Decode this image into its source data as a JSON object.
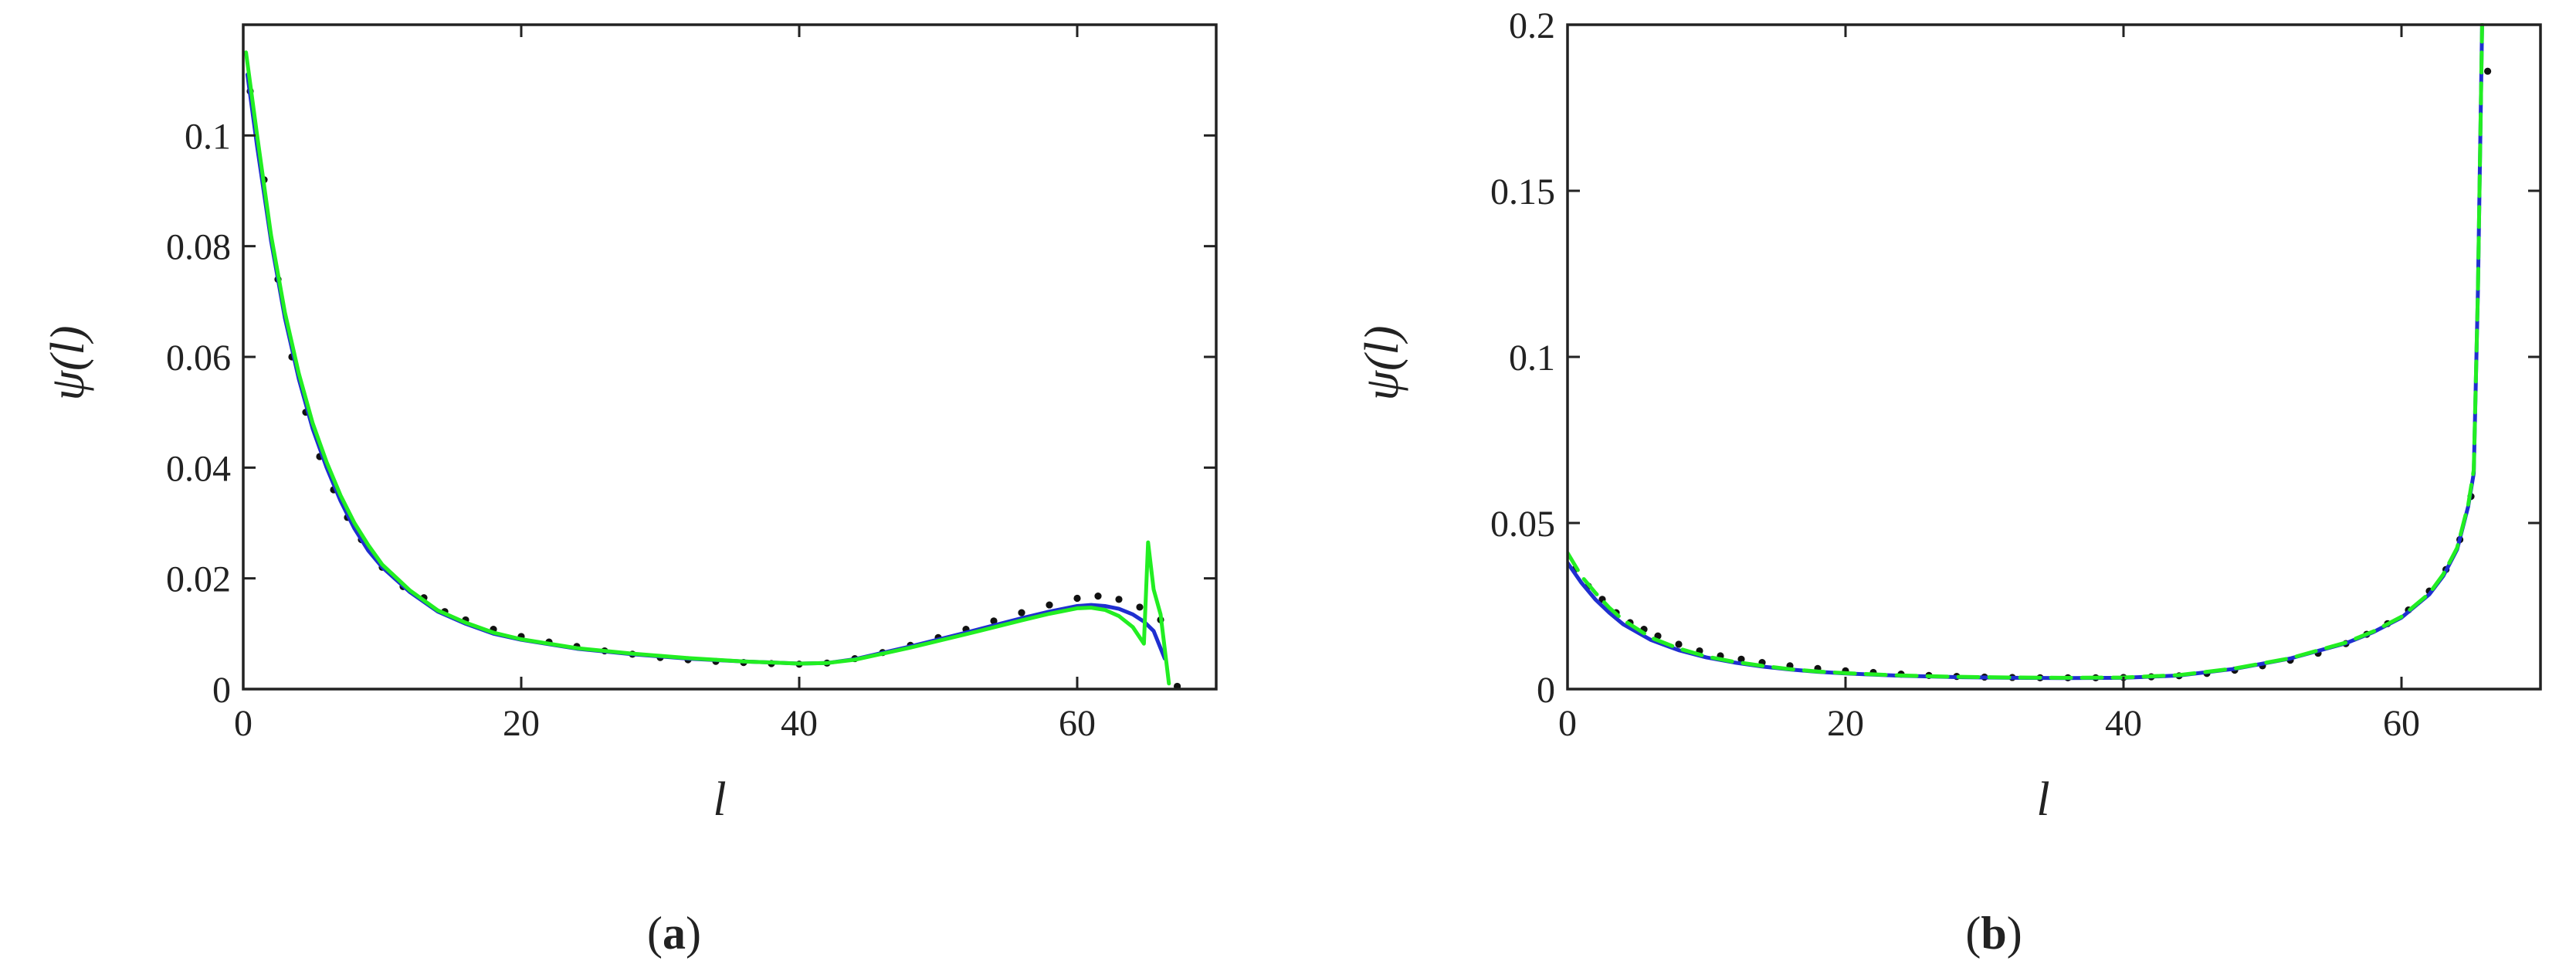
{
  "colors": {
    "axis": "#222222",
    "blue": "#1f2fd0",
    "green": "#22ee22",
    "dots": "#111111"
  },
  "chart_data": [
    {
      "type": "line",
      "panel_label": "a",
      "xlabel": "l",
      "ylabel": "ψ(l)",
      "xlim": [
        0,
        70
      ],
      "ylim": [
        0,
        0.12
      ],
      "x_ticks": [
        0,
        20,
        40,
        60
      ],
      "x_tick_labels": [
        "0",
        "20",
        "40",
        "60"
      ],
      "y_ticks": [
        0,
        0.02,
        0.04,
        0.06,
        0.08,
        0.1
      ],
      "y_tick_labels": [
        "0",
        "0.02",
        "0.04",
        "0.06",
        "0.08",
        "0.1"
      ],
      "grid": false,
      "series": [
        {
          "style": "dotted",
          "color": "#111111",
          "x": [
            0.5,
            1.5,
            2.5,
            3.5,
            4.5,
            5.5,
            6.5,
            7.5,
            8.5,
            10,
            11.5,
            13,
            14.5,
            16,
            18,
            20,
            22,
            24,
            26,
            28,
            30,
            32,
            34,
            36,
            38,
            40,
            42,
            44,
            46,
            48,
            50,
            52,
            54,
            56,
            58,
            60,
            61.5,
            63,
            64.5,
            66,
            67.2
          ],
          "y": [
            0.108,
            0.092,
            0.074,
            0.06,
            0.05,
            0.042,
            0.036,
            0.031,
            0.027,
            0.022,
            0.0185,
            0.0165,
            0.014,
            0.0125,
            0.0108,
            0.0095,
            0.0085,
            0.0077,
            0.0069,
            0.0063,
            0.0057,
            0.0053,
            0.005,
            0.0048,
            0.0046,
            0.0045,
            0.0047,
            0.0055,
            0.0066,
            0.0079,
            0.0093,
            0.0108,
            0.0123,
            0.0138,
            0.0152,
            0.0164,
            0.0168,
            0.0162,
            0.0148,
            0.0125,
            0.0005
          ]
        },
        {
          "style": "solid",
          "color": "#1f2fd0",
          "x": [
            0.3,
            1,
            2,
            3,
            4,
            5,
            6,
            7,
            8,
            9,
            10,
            12,
            14,
            16,
            18,
            20,
            24,
            28,
            32,
            36,
            40,
            42,
            44,
            48,
            52,
            56,
            58,
            60,
            61,
            62,
            63,
            64,
            64.8,
            65.5,
            66.3
          ],
          "y": [
            0.111,
            0.098,
            0.081,
            0.067,
            0.056,
            0.047,
            0.04,
            0.034,
            0.029,
            0.025,
            0.022,
            0.0175,
            0.014,
            0.0118,
            0.01,
            0.0089,
            0.0073,
            0.0063,
            0.0055,
            0.005,
            0.0046,
            0.0047,
            0.0054,
            0.0077,
            0.0102,
            0.0128,
            0.014,
            0.015,
            0.0152,
            0.015,
            0.0145,
            0.0135,
            0.0122,
            0.0105,
            0.0055
          ]
        },
        {
          "style": "solid",
          "color": "#22ee22",
          "x": [
            0.2,
            1,
            2,
            3,
            4,
            5,
            6,
            7,
            8,
            9,
            10,
            12,
            14,
            16,
            18,
            20,
            24,
            28,
            32,
            36,
            40,
            42,
            44,
            48,
            52,
            56,
            58,
            60,
            61,
            62,
            63,
            64,
            64.8,
            65.1,
            65.5,
            66,
            66.6
          ],
          "y": [
            0.115,
            0.1,
            0.082,
            0.068,
            0.057,
            0.048,
            0.041,
            0.035,
            0.03,
            0.026,
            0.0225,
            0.0178,
            0.0142,
            0.012,
            0.0102,
            0.009,
            0.0074,
            0.0064,
            0.0056,
            0.005,
            0.0046,
            0.0047,
            0.0053,
            0.0075,
            0.0099,
            0.0124,
            0.0136,
            0.0146,
            0.0147,
            0.0143,
            0.0132,
            0.0112,
            0.0082,
            0.0265,
            0.018,
            0.0135,
            0.001
          ]
        }
      ]
    },
    {
      "type": "line",
      "panel_label": "b",
      "xlabel": "l",
      "ylabel": "ψ(l)",
      "xlim": [
        0,
        70
      ],
      "ylim": [
        0,
        0.2
      ],
      "x_ticks": [
        0,
        20,
        40,
        60
      ],
      "x_tick_labels": [
        "0",
        "20",
        "40",
        "60"
      ],
      "y_ticks": [
        0,
        0.05,
        0.1,
        0.15,
        0.2
      ],
      "y_tick_labels": [
        "0",
        "0.05",
        "0.1",
        "0.15",
        "0.2"
      ],
      "grid": false,
      "series": [
        {
          "style": "dotted",
          "color": "#111111",
          "x": [
            0.5,
            1.5,
            2.5,
            3.5,
            4.5,
            5.5,
            6.5,
            8,
            9.5,
            11,
            12.5,
            14,
            16,
            18,
            20,
            22,
            24,
            26,
            28,
            30,
            32,
            34,
            36,
            38,
            40,
            42,
            44,
            46,
            48,
            50,
            52,
            54,
            56,
            57.5,
            59,
            60.5,
            62,
            63.2,
            64.2,
            65,
            66.2
          ],
          "y": [
            0.036,
            0.031,
            0.027,
            0.023,
            0.02,
            0.018,
            0.016,
            0.0135,
            0.0115,
            0.01,
            0.009,
            0.008,
            0.007,
            0.0062,
            0.0055,
            0.005,
            0.0045,
            0.0041,
            0.0038,
            0.0036,
            0.0035,
            0.0034,
            0.0034,
            0.0034,
            0.0035,
            0.0037,
            0.004,
            0.0047,
            0.0057,
            0.007,
            0.0087,
            0.0108,
            0.0137,
            0.0165,
            0.0197,
            0.0238,
            0.0295,
            0.036,
            0.045,
            0.058,
            0.186
          ]
        },
        {
          "style": "solid",
          "color": "#1f2fd0",
          "x": [
            0,
            1,
            2,
            3,
            4,
            6,
            8,
            10,
            12,
            14,
            16,
            18,
            20,
            24,
            28,
            32,
            36,
            40,
            44,
            48,
            52,
            56,
            58,
            60,
            62,
            63,
            64,
            64.8,
            65.2,
            65.5,
            65.8
          ],
          "y": [
            0.038,
            0.032,
            0.027,
            0.023,
            0.0195,
            0.0148,
            0.0117,
            0.0095,
            0.008,
            0.0068,
            0.0059,
            0.0052,
            0.0047,
            0.004,
            0.0036,
            0.0034,
            0.0033,
            0.0034,
            0.0041,
            0.0061,
            0.0092,
            0.0138,
            0.0172,
            0.0215,
            0.0285,
            0.034,
            0.042,
            0.055,
            0.065,
            0.12,
            0.2
          ]
        },
        {
          "style": "dashed",
          "color": "#22ee22",
          "x": [
            0,
            1,
            2,
            3,
            4,
            6,
            8,
            10,
            12,
            14,
            16,
            18,
            20,
            24,
            28,
            32,
            36,
            40,
            44,
            48,
            52,
            56,
            58,
            60,
            62,
            63,
            64,
            64.8,
            65.2,
            65.5,
            65.8
          ],
          "y": [
            0.041,
            0.034,
            0.029,
            0.0245,
            0.0208,
            0.0155,
            0.0122,
            0.0098,
            0.0082,
            0.007,
            0.006,
            0.0053,
            0.0048,
            0.0041,
            0.0037,
            0.0035,
            0.0034,
            0.0035,
            0.0042,
            0.0062,
            0.0093,
            0.014,
            0.0174,
            0.0218,
            0.0288,
            0.0345,
            0.0425,
            0.0555,
            0.066,
            0.12,
            0.2
          ]
        }
      ]
    }
  ]
}
